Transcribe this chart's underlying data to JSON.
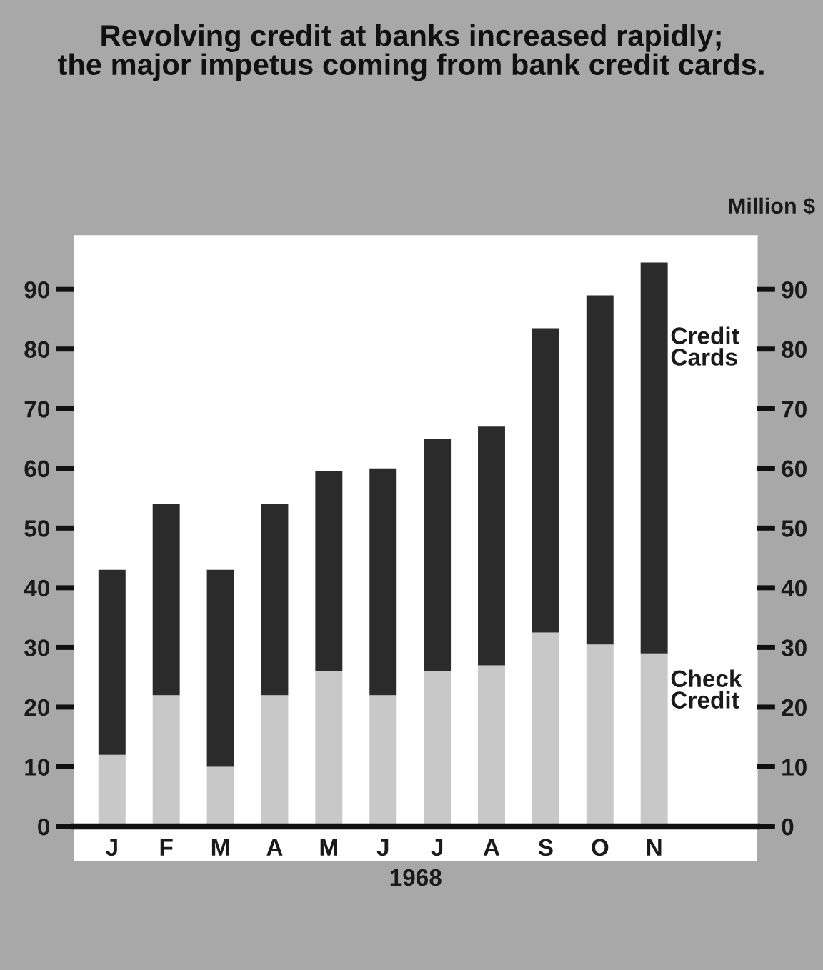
{
  "chart_data": {
    "type": "bar",
    "stacked": true,
    "title": "Revolving credit at banks increased rapidly; the major impetus coming from bank credit cards.",
    "y2label": "Million $",
    "xlabel": "1968",
    "categories": [
      "J",
      "F",
      "M",
      "A",
      "M",
      "J",
      "J",
      "A",
      "S",
      "O",
      "N"
    ],
    "series": [
      {
        "name": "Check Credit",
        "color": "#c8c8c8",
        "values": [
          12,
          22,
          10,
          22,
          26,
          22,
          26,
          27,
          32.5,
          30.5,
          29
        ]
      },
      {
        "name": "Credit Cards",
        "color": "#2b2b2b",
        "values": [
          31,
          32,
          33,
          32,
          33.5,
          38,
          39,
          40,
          51,
          58.5,
          65.5
        ]
      }
    ],
    "ylim": [
      0,
      99
    ],
    "yticks": [
      0,
      10,
      20,
      30,
      40,
      50,
      60,
      70,
      80,
      90
    ],
    "y2lim": [
      0,
      99
    ],
    "y2ticks": [
      0,
      10,
      20,
      30,
      40,
      50,
      60,
      70,
      80,
      90
    ],
    "legend": false,
    "grid": false
  }
}
